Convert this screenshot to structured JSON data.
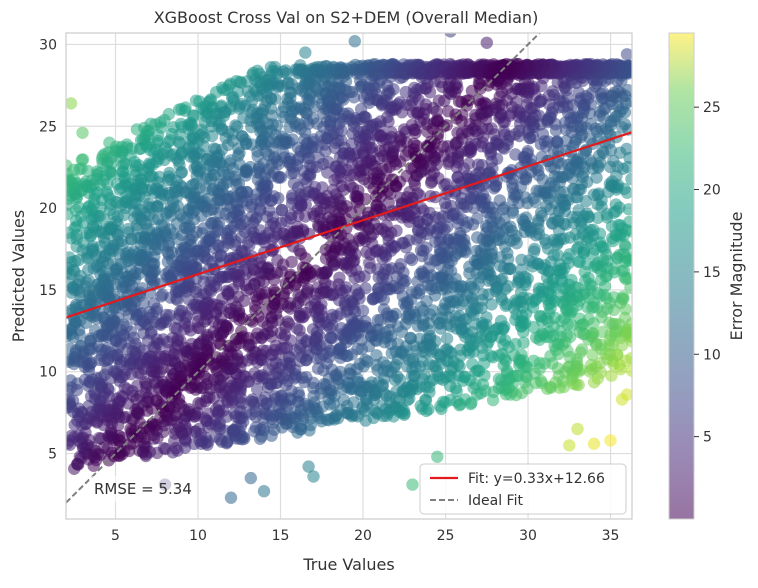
{
  "chart_data": {
    "type": "scatter",
    "title": "XGBoost Cross Val on S2+DEM (Overall Median)",
    "xlabel": "True Values",
    "ylabel": "Predicted Values",
    "xlim": [
      2,
      36.3
    ],
    "ylim": [
      1,
      30.7
    ],
    "xticks": [
      5,
      10,
      15,
      20,
      25,
      30,
      35
    ],
    "yticks": [
      5,
      10,
      15,
      20,
      25,
      30
    ],
    "grid": true,
    "fit_line": {
      "label": "Fit: y=0.33x+12.66",
      "slope": 0.33,
      "intercept": 12.66,
      "color": "#e31a1c"
    },
    "ideal_line": {
      "label": "Ideal Fit",
      "slope": 1,
      "intercept": 0,
      "color": "#7f7f7f",
      "dash": true
    },
    "rmse_label": "RMSE = 5.34",
    "legend_position": "lower-right",
    "colorbar": {
      "label": "Error Magnitude",
      "colormap": "viridis",
      "range": [
        0,
        29.5
      ],
      "ticks": [
        5,
        10,
        15,
        20,
        25
      ]
    },
    "point_cloud": {
      "description_values": "dense cloud of predictions vs true values colored by absolute error",
      "y_band_center_slope": 0.33,
      "y_band_center_intercept": 12.66,
      "y_band_half_width": 12.5,
      "outliers": [
        [
          19.5,
          30.2
        ],
        [
          16.5,
          29.5
        ],
        [
          25.3,
          30.8
        ],
        [
          27.5,
          30.1
        ],
        [
          36,
          29.4
        ],
        [
          34,
          5.6
        ],
        [
          35,
          5.8
        ],
        [
          35.7,
          8.3
        ],
        [
          36,
          8.6
        ],
        [
          33,
          6.5
        ],
        [
          32.5,
          5.5
        ],
        [
          24.5,
          4.8
        ],
        [
          23,
          3.1
        ],
        [
          12,
          2.3
        ],
        [
          14,
          2.7
        ],
        [
          13.2,
          3.5
        ],
        [
          8,
          3.1
        ],
        [
          2.3,
          26.4
        ],
        [
          3,
          24.6
        ],
        [
          16.7,
          4.2
        ],
        [
          17,
          3.6
        ]
      ]
    }
  }
}
